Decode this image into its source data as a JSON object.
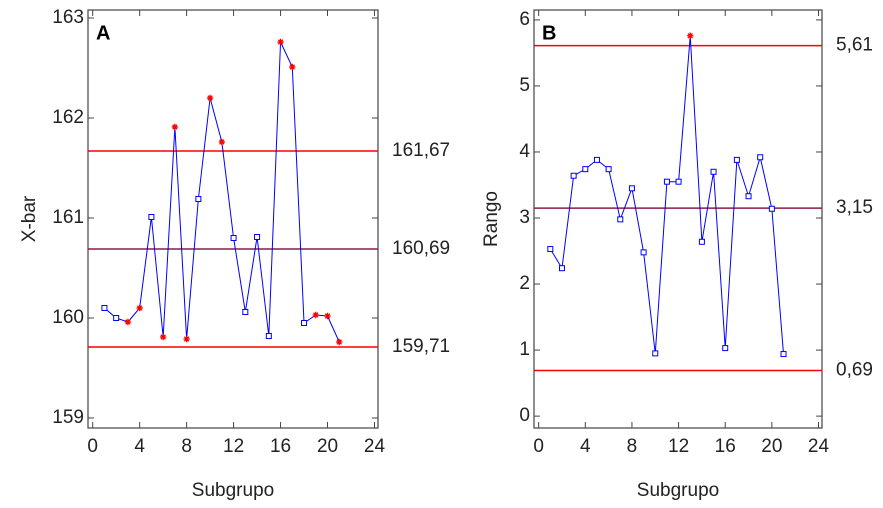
{
  "chart_data": [
    {
      "type": "line",
      "title": "A",
      "x_label": "Subgrupo",
      "y_label": "X-bar",
      "x": [
        1,
        2,
        3,
        4,
        5,
        6,
        7,
        8,
        9,
        10,
        11,
        12,
        13,
        14,
        15,
        16,
        17,
        18,
        19,
        20,
        21
      ],
      "series": [
        {
          "color": "#0000ff",
          "values": [
            160.1,
            160.0,
            159.96,
            160.1,
            161.01,
            159.81,
            161.91,
            159.79,
            161.19,
            162.2,
            161.76,
            160.8,
            160.06,
            160.81,
            159.82,
            162.76,
            162.51,
            159.95,
            160.03,
            160.02,
            159.76
          ],
          "point_colors": [
            "#0000ff",
            "#0000ff",
            "#ff0000",
            "#ff0000",
            "#0000ff",
            "#ff0000",
            "#ff0000",
            "#ff0000",
            "#0000ff",
            "#ff0000",
            "#ff0000",
            "#0000ff",
            "#0000ff",
            "#0000ff",
            "#0000ff",
            "#ff0000",
            "#ff0000",
            "#0000ff",
            "#ff0000",
            "#ff0000",
            "#ff0000"
          ]
        }
      ],
      "control_limits": [
        {
          "value": 161.67,
          "label": "161,67",
          "color": "#ff0000"
        },
        {
          "value": 160.69,
          "label": "160,69",
          "color": "#8b1a4a"
        },
        {
          "value": 159.71,
          "label": "159,71",
          "color": "#ff0000"
        }
      ],
      "xlim": [
        -0.4,
        24.3
      ],
      "xticks": [
        0,
        4,
        8,
        12,
        16,
        20,
        24
      ],
      "ylim": [
        158.9,
        163.08
      ],
      "yticks": [
        159,
        160,
        161,
        162,
        163
      ]
    },
    {
      "type": "line",
      "title": "B",
      "x_label": "Subgrupo",
      "y_label": "Rango",
      "x": [
        1,
        2,
        3,
        4,
        5,
        6,
        7,
        8,
        9,
        10,
        11,
        12,
        13,
        14,
        15,
        16,
        17,
        18,
        19,
        20,
        21
      ],
      "series": [
        {
          "color": "#0000ff",
          "values": [
            2.53,
            2.24,
            3.64,
            3.74,
            3.88,
            3.74,
            2.98,
            3.45,
            2.48,
            0.95,
            3.55,
            3.55,
            5.76,
            2.64,
            3.7,
            1.03,
            3.88,
            3.33,
            3.92,
            3.14,
            0.94
          ],
          "point_colors": [
            "#0000ff",
            "#0000ff",
            "#0000ff",
            "#0000ff",
            "#0000ff",
            "#0000ff",
            "#0000ff",
            "#0000ff",
            "#0000ff",
            "#0000ff",
            "#0000ff",
            "#0000ff",
            "#ff0000",
            "#0000ff",
            "#0000ff",
            "#0000ff",
            "#0000ff",
            "#0000ff",
            "#0000ff",
            "#0000ff",
            "#0000ff"
          ]
        }
      ],
      "control_limits": [
        {
          "value": 5.61,
          "label": "5,61",
          "color": "#ff0000"
        },
        {
          "value": 3.15,
          "label": "3,15",
          "color": "#8b1a4a"
        },
        {
          "value": 0.69,
          "label": "0,69",
          "color": "#ff0000"
        }
      ],
      "xlim": [
        -0.4,
        24.3
      ],
      "xticks": [
        0,
        4,
        8,
        12,
        16,
        20,
        24
      ],
      "ylim": [
        -0.18,
        6.15
      ],
      "yticks": [
        0,
        1,
        2,
        3,
        4,
        5,
        6
      ]
    }
  ]
}
